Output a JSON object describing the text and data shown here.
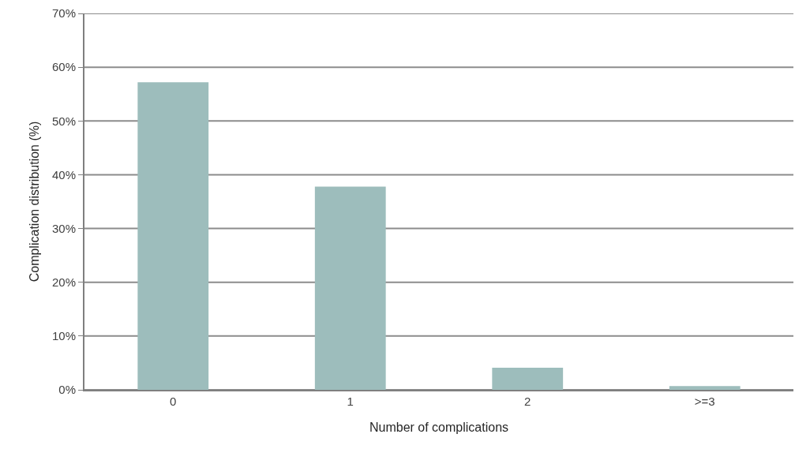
{
  "chart_data": {
    "type": "bar",
    "xlabel": "Number of complications",
    "ylabel": "Complication distribution (%)",
    "categories": [
      "0",
      "1",
      "2",
      ">=3"
    ],
    "values": [
      57.2,
      37.8,
      4.1,
      0.7
    ],
    "color": "#9dbdbc",
    "ylim": [
      0,
      70
    ],
    "yticks": [
      {
        "value": 0,
        "label": "0%"
      },
      {
        "value": 10,
        "label": "10%"
      },
      {
        "value": 20,
        "label": "20%"
      },
      {
        "value": 30,
        "label": "30%"
      },
      {
        "value": 40,
        "label": "40%"
      },
      {
        "value": 50,
        "label": "50%"
      },
      {
        "value": 60,
        "label": "60%"
      },
      {
        "value": 70,
        "label": "70%"
      }
    ],
    "grid": "y"
  }
}
